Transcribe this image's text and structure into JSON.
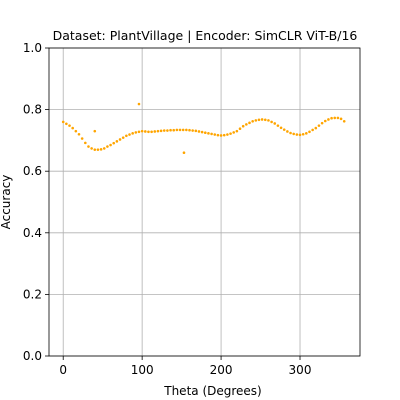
{
  "chart_data": {
    "type": "scatter",
    "title": "Dataset: PlantVillage | Encoder: SimCLR ViT-B/16",
    "x_label": "Theta (Degrees)",
    "y_label": "Accuracy",
    "grid": true,
    "xlim": [
      -18,
      376
    ],
    "ylim": [
      0,
      1
    ],
    "xticks": [
      0,
      100,
      200,
      300
    ],
    "yticks": [
      {
        "value": 0,
        "label": "0.0"
      },
      0.2,
      0.4,
      0.6,
      0.8,
      {
        "value": 1,
        "label": "1.0"
      }
    ],
    "series": [
      {
        "color": "#ffa500",
        "x": [
          0,
          4,
          8,
          12,
          16,
          20,
          24,
          28,
          32,
          36,
          40,
          44,
          48,
          52,
          56,
          60,
          64,
          68,
          72,
          76,
          80,
          84,
          88,
          92,
          96,
          100,
          104,
          108,
          112,
          116,
          120,
          124,
          128,
          132,
          136,
          140,
          144,
          148,
          152,
          156,
          160,
          164,
          168,
          172,
          176,
          180,
          184,
          188,
          192,
          196,
          200,
          204,
          208,
          212,
          216,
          220,
          224,
          228,
          232,
          236,
          240,
          244,
          248,
          252,
          256,
          260,
          264,
          268,
          272,
          276,
          280,
          284,
          288,
          292,
          296,
          300,
          304,
          308,
          312,
          316,
          320,
          324,
          328,
          332,
          336,
          340,
          344,
          348,
          352,
          356,
          40,
          96,
          153
        ],
        "values": [
          0.76,
          0.754,
          0.748,
          0.74,
          0.73,
          0.72,
          0.706,
          0.692,
          0.68,
          0.674,
          0.67,
          0.67,
          0.671,
          0.674,
          0.68,
          0.685,
          0.691,
          0.697,
          0.703,
          0.709,
          0.715,
          0.719,
          0.723,
          0.726,
          0.728,
          0.73,
          0.729,
          0.728,
          0.728,
          0.729,
          0.73,
          0.731,
          0.732,
          0.732,
          0.733,
          0.733,
          0.734,
          0.734,
          0.734,
          0.734,
          0.733,
          0.732,
          0.731,
          0.729,
          0.727,
          0.725,
          0.723,
          0.721,
          0.719,
          0.717,
          0.716,
          0.717,
          0.719,
          0.722,
          0.726,
          0.73,
          0.738,
          0.746,
          0.752,
          0.757,
          0.762,
          0.765,
          0.767,
          0.768,
          0.767,
          0.765,
          0.76,
          0.755,
          0.748,
          0.741,
          0.735,
          0.729,
          0.724,
          0.721,
          0.719,
          0.718,
          0.72,
          0.723,
          0.728,
          0.734,
          0.74,
          0.748,
          0.756,
          0.763,
          0.768,
          0.772,
          0.773,
          0.773,
          0.77,
          0.762,
          0.73,
          0.818,
          0.66
        ]
      }
    ]
  }
}
